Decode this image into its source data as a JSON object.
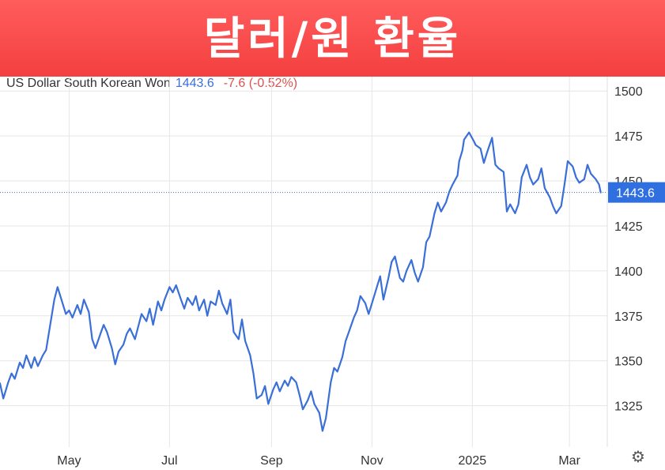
{
  "banner": {
    "title": "달러/원 환율"
  },
  "quote": {
    "instrument": "US Dollar South Korean Won",
    "price": "1443.6",
    "change": "-7.6 (-0.52%)"
  },
  "colors": {
    "banner": "#f44b4b",
    "line": "#3a6fd8",
    "negative": "#d9534f",
    "last_price_tag": "#2f6fe0",
    "grid": "#e6e6e6"
  },
  "icons": {
    "settings": "gear-icon"
  },
  "chart_data": {
    "type": "line",
    "title": "",
    "xlabel": "",
    "ylabel": "",
    "x_tick_labels": [
      "May",
      "Jul",
      "Sep",
      "Nov",
      "2025",
      "Mar"
    ],
    "x_tick_dates": [
      "2024-05-01",
      "2024-07-01",
      "2024-09-01",
      "2024-11-01",
      "2025-01-01",
      "2025-03-01"
    ],
    "xlim": [
      "2024-03-20",
      "2025-03-24"
    ],
    "y_ticks": [
      1325,
      1350,
      1375,
      1400,
      1425,
      1450,
      1475,
      1500
    ],
    "ylim": [
      1302,
      1508
    ],
    "grid": true,
    "last_value_label": "1443.6",
    "series": [
      {
        "points": [
          [
            "2024-03-20",
            1337.5
          ],
          [
            "2024-03-22",
            1329
          ],
          [
            "2024-03-25",
            1338
          ],
          [
            "2024-03-27",
            1343
          ],
          [
            "2024-03-29",
            1340
          ],
          [
            "2024-04-01",
            1349
          ],
          [
            "2024-04-03",
            1346
          ],
          [
            "2024-04-05",
            1353
          ],
          [
            "2024-04-08",
            1346
          ],
          [
            "2024-04-10",
            1352
          ],
          [
            "2024-04-12",
            1347
          ],
          [
            "2024-04-15",
            1353
          ],
          [
            "2024-04-17",
            1356
          ],
          [
            "2024-04-19",
            1367
          ],
          [
            "2024-04-22",
            1384
          ],
          [
            "2024-04-24",
            1391
          ],
          [
            "2024-04-26",
            1385
          ],
          [
            "2024-04-29",
            1376
          ],
          [
            "2024-05-01",
            1378
          ],
          [
            "2024-05-03",
            1374
          ],
          [
            "2024-05-06",
            1381
          ],
          [
            "2024-05-08",
            1376
          ],
          [
            "2024-05-10",
            1384
          ],
          [
            "2024-05-13",
            1377
          ],
          [
            "2024-05-15",
            1362
          ],
          [
            "2024-05-17",
            1357
          ],
          [
            "2024-05-20",
            1365
          ],
          [
            "2024-05-22",
            1370
          ],
          [
            "2024-05-24",
            1366
          ],
          [
            "2024-05-27",
            1357
          ],
          [
            "2024-05-29",
            1348
          ],
          [
            "2024-05-31",
            1355
          ],
          [
            "2024-06-03",
            1359
          ],
          [
            "2024-06-05",
            1365
          ],
          [
            "2024-06-07",
            1368
          ],
          [
            "2024-06-10",
            1362
          ],
          [
            "2024-06-12",
            1369
          ],
          [
            "2024-06-14",
            1376
          ],
          [
            "2024-06-17",
            1372
          ],
          [
            "2024-06-19",
            1379
          ],
          [
            "2024-06-21",
            1370
          ],
          [
            "2024-06-24",
            1383
          ],
          [
            "2024-06-26",
            1378
          ],
          [
            "2024-06-28",
            1384
          ],
          [
            "2024-07-01",
            1391
          ],
          [
            "2024-07-03",
            1388
          ],
          [
            "2024-07-05",
            1392
          ],
          [
            "2024-07-08",
            1384
          ],
          [
            "2024-07-10",
            1379
          ],
          [
            "2024-07-12",
            1385
          ],
          [
            "2024-07-15",
            1381
          ],
          [
            "2024-07-17",
            1386
          ],
          [
            "2024-07-19",
            1378
          ],
          [
            "2024-07-22",
            1384
          ],
          [
            "2024-07-24",
            1375
          ],
          [
            "2024-07-26",
            1383
          ],
          [
            "2024-07-29",
            1381
          ],
          [
            "2024-07-31",
            1389
          ],
          [
            "2024-08-02",
            1382
          ],
          [
            "2024-08-05",
            1376
          ],
          [
            "2024-08-07",
            1384
          ],
          [
            "2024-08-09",
            1366
          ],
          [
            "2024-08-12",
            1362
          ],
          [
            "2024-08-14",
            1373
          ],
          [
            "2024-08-16",
            1361
          ],
          [
            "2024-08-19",
            1353
          ],
          [
            "2024-08-21",
            1343
          ],
          [
            "2024-08-23",
            1329
          ],
          [
            "2024-08-26",
            1331
          ],
          [
            "2024-08-28",
            1336
          ],
          [
            "2024-08-30",
            1326
          ],
          [
            "2024-09-02",
            1334
          ],
          [
            "2024-09-04",
            1338
          ],
          [
            "2024-09-06",
            1333
          ],
          [
            "2024-09-09",
            1339
          ],
          [
            "2024-09-11",
            1336
          ],
          [
            "2024-09-13",
            1341
          ],
          [
            "2024-09-16",
            1338
          ],
          [
            "2024-09-18",
            1331
          ],
          [
            "2024-09-20",
            1323
          ],
          [
            "2024-09-23",
            1328
          ],
          [
            "2024-09-25",
            1333
          ],
          [
            "2024-09-27",
            1326
          ],
          [
            "2024-09-30",
            1321
          ],
          [
            "2024-10-02",
            1311
          ],
          [
            "2024-10-04",
            1318
          ],
          [
            "2024-10-07",
            1338
          ],
          [
            "2024-10-09",
            1346
          ],
          [
            "2024-10-11",
            1344
          ],
          [
            "2024-10-14",
            1352
          ],
          [
            "2024-10-16",
            1361
          ],
          [
            "2024-10-18",
            1366
          ],
          [
            "2024-10-21",
            1374
          ],
          [
            "2024-10-23",
            1378
          ],
          [
            "2024-10-25",
            1386
          ],
          [
            "2024-10-28",
            1382
          ],
          [
            "2024-10-30",
            1376
          ],
          [
            "2024-11-01",
            1382
          ],
          [
            "2024-11-04",
            1391
          ],
          [
            "2024-11-06",
            1397
          ],
          [
            "2024-11-08",
            1384
          ],
          [
            "2024-11-11",
            1396
          ],
          [
            "2024-11-13",
            1405
          ],
          [
            "2024-11-15",
            1408
          ],
          [
            "2024-11-18",
            1396
          ],
          [
            "2024-11-20",
            1394
          ],
          [
            "2024-11-22",
            1400
          ],
          [
            "2024-11-25",
            1406
          ],
          [
            "2024-11-27",
            1399
          ],
          [
            "2024-11-29",
            1394
          ],
          [
            "2024-12-02",
            1402
          ],
          [
            "2024-12-04",
            1416
          ],
          [
            "2024-12-06",
            1419
          ],
          [
            "2024-12-09",
            1432
          ],
          [
            "2024-12-11",
            1438
          ],
          [
            "2024-12-13",
            1433
          ],
          [
            "2024-12-16",
            1438
          ],
          [
            "2024-12-18",
            1444
          ],
          [
            "2024-12-20",
            1448
          ],
          [
            "2024-12-23",
            1453
          ],
          [
            "2024-12-24",
            1461
          ],
          [
            "2024-12-26",
            1467
          ],
          [
            "2024-12-27",
            1473
          ],
          [
            "2024-12-30",
            1477
          ],
          [
            "2025-01-02",
            1472
          ],
          [
            "2025-01-03",
            1470
          ],
          [
            "2025-01-06",
            1468
          ],
          [
            "2025-01-08",
            1460
          ],
          [
            "2025-01-10",
            1466
          ],
          [
            "2025-01-13",
            1474
          ],
          [
            "2025-01-15",
            1459
          ],
          [
            "2025-01-17",
            1457
          ],
          [
            "2025-01-20",
            1455
          ],
          [
            "2025-01-22",
            1433
          ],
          [
            "2025-01-24",
            1437
          ],
          [
            "2025-01-27",
            1432
          ],
          [
            "2025-01-29",
            1437
          ],
          [
            "2025-01-31",
            1452
          ],
          [
            "2025-02-03",
            1459
          ],
          [
            "2025-02-05",
            1452
          ],
          [
            "2025-02-07",
            1448
          ],
          [
            "2025-02-10",
            1451
          ],
          [
            "2025-02-12",
            1457
          ],
          [
            "2025-02-14",
            1446
          ],
          [
            "2025-02-17",
            1441
          ],
          [
            "2025-02-19",
            1436
          ],
          [
            "2025-02-21",
            1432
          ],
          [
            "2025-02-24",
            1436
          ],
          [
            "2025-02-26",
            1448
          ],
          [
            "2025-02-28",
            1461
          ],
          [
            "2025-03-03",
            1458
          ],
          [
            "2025-03-05",
            1452
          ],
          [
            "2025-03-07",
            1449
          ],
          [
            "2025-03-10",
            1451
          ],
          [
            "2025-03-12",
            1459
          ],
          [
            "2025-03-14",
            1454
          ],
          [
            "2025-03-17",
            1451
          ],
          [
            "2025-03-19",
            1448
          ],
          [
            "2025-03-20",
            1443.6
          ]
        ]
      }
    ]
  }
}
